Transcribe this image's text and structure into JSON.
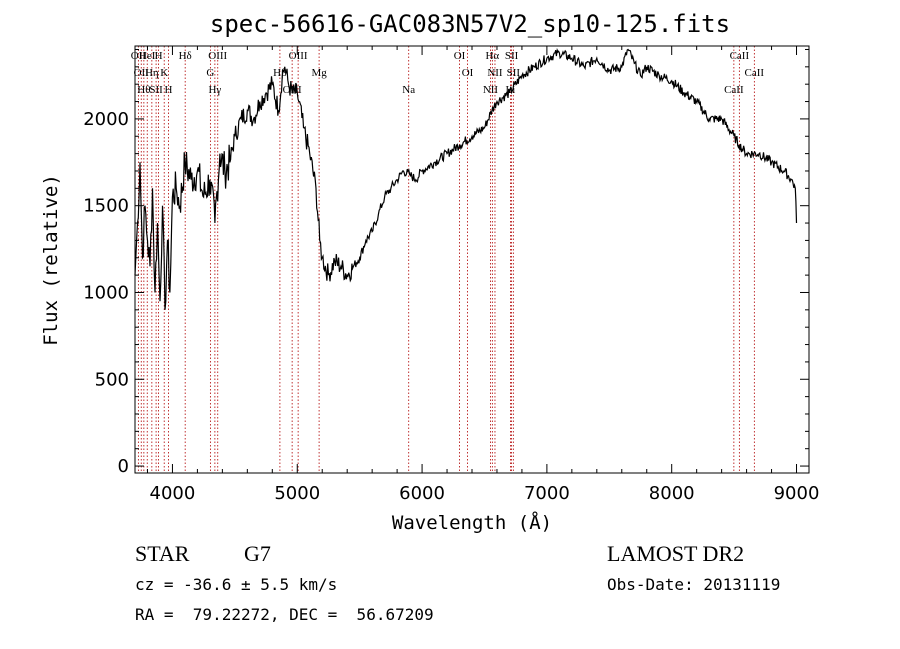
{
  "chart_data": {
    "type": "line",
    "title": "spec-56616-GAC083N57V2_sp10-125.fits",
    "xlabel": "Wavelength (Å)",
    "ylabel": "Flux (relative)",
    "xlim": [
      3700,
      9100
    ],
    "ylim": [
      -40,
      2420
    ],
    "x_ticks": [
      4000,
      5000,
      6000,
      7000,
      8000,
      9000
    ],
    "y_ticks": [
      0,
      500,
      1000,
      1500,
      2000
    ],
    "grid": false,
    "series": [
      {
        "x": [
          3700,
          3720,
          3740,
          3760,
          3780,
          3800,
          3820,
          3840,
          3860,
          3880,
          3900,
          3920,
          3940,
          3960,
          3980,
          4000,
          4030,
          4060,
          4100,
          4150,
          4200,
          4250,
          4300,
          4340,
          4380,
          4420,
          4460,
          4500,
          4550,
          4600,
          4650,
          4700,
          4750,
          4800,
          4850,
          4880,
          4900,
          4930,
          4960,
          5000,
          5050,
          5100,
          5150,
          5180,
          5200,
          5250,
          5300,
          5350,
          5400,
          5450,
          5500,
          5550,
          5600,
          5650,
          5700,
          5750,
          5800,
          5850,
          5900,
          5950,
          6000,
          6100,
          6200,
          6300,
          6400,
          6500,
          6560,
          6600,
          6700,
          6800,
          6900,
          7000,
          7100,
          7200,
          7300,
          7400,
          7500,
          7600,
          7650,
          7700,
          7750,
          7800,
          7900,
          8000,
          8100,
          8200,
          8300,
          8400,
          8500,
          8540,
          8600,
          8700,
          8800,
          8900,
          8960,
          8990,
          9000
        ],
        "y": [
          1100,
          1400,
          1750,
          1200,
          1500,
          1300,
          1150,
          1600,
          1000,
          1400,
          950,
          1500,
          900,
          1300,
          1000,
          1550,
          1600,
          1500,
          1750,
          1650,
          1700,
          1550,
          1650,
          1400,
          1800,
          1700,
          1750,
          1900,
          2000,
          2050,
          2000,
          2100,
          2150,
          2200,
          2050,
          2250,
          2300,
          2200,
          2150,
          2150,
          1950,
          1800,
          1600,
          1300,
          1200,
          1100,
          1180,
          1150,
          1100,
          1150,
          1200,
          1300,
          1350,
          1450,
          1550,
          1600,
          1650,
          1700,
          1680,
          1650,
          1700,
          1750,
          1800,
          1850,
          1900,
          1950,
          2050,
          2100,
          2150,
          2250,
          2300,
          2350,
          2380,
          2350,
          2300,
          2350,
          2280,
          2300,
          2400,
          2320,
          2250,
          2300,
          2250,
          2220,
          2150,
          2100,
          2000,
          2000,
          1900,
          1850,
          1800,
          1800,
          1750,
          1700,
          1650,
          1600,
          1400
        ]
      }
    ],
    "line_markers": [
      {
        "wl": 3727,
        "label": "OII"
      },
      {
        "wl": 3750,
        "label": "OII"
      },
      {
        "wl": 3771,
        "label": "Hθ"
      },
      {
        "wl": 3798,
        "label": "HeI"
      },
      {
        "wl": 3835,
        "label": "Hη"
      },
      {
        "wl": 3869,
        "label": "SII"
      },
      {
        "wl": 3889,
        "label": "H"
      },
      {
        "wl": 3934,
        "label": "K"
      },
      {
        "wl": 3968,
        "label": "H"
      },
      {
        "wl": 4102,
        "label": "Hδ"
      },
      {
        "wl": 4304,
        "label": "G"
      },
      {
        "wl": 4340,
        "label": "Hγ"
      },
      {
        "wl": 4363,
        "label": "OIII"
      },
      {
        "wl": 4861,
        "label": "Hβ"
      },
      {
        "wl": 4959,
        "label": "OIII"
      },
      {
        "wl": 5007,
        "label": "OIII"
      },
      {
        "wl": 5175,
        "label": "Mg"
      },
      {
        "wl": 5893,
        "label": "Na"
      },
      {
        "wl": 6300,
        "label": "OI"
      },
      {
        "wl": 6364,
        "label": "OI"
      },
      {
        "wl": 6548,
        "label": "NII"
      },
      {
        "wl": 6563,
        "label": "Hα"
      },
      {
        "wl": 6584,
        "label": "NII"
      },
      {
        "wl": 6708,
        "label": "Li"
      },
      {
        "wl": 6717,
        "label": "SII"
      },
      {
        "wl": 6731,
        "label": "SII"
      },
      {
        "wl": 8498,
        "label": "CaII"
      },
      {
        "wl": 8542,
        "label": "CaII"
      },
      {
        "wl": 8662,
        "label": "CaII"
      }
    ]
  },
  "info": {
    "class_label": "STAR",
    "subclass": "G7",
    "cz_line": "cz = -36.6 ± 5.5 km/s",
    "coords_line": "RA =  79.22272, DEC =  56.67209",
    "survey": "LAMOST DR2",
    "obs_date_line": "Obs-Date: 20131119"
  }
}
